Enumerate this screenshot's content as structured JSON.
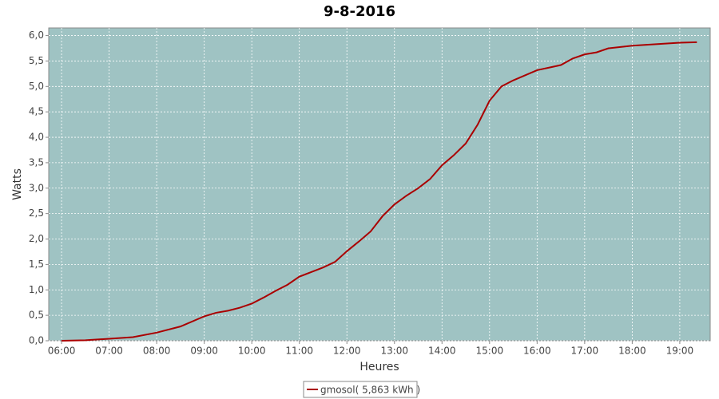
{
  "chart_data": {
    "type": "line",
    "title": "9-8-2016",
    "x_label": "Heures",
    "y_label": "Watts",
    "x": [
      6,
      6.5,
      7,
      7.5,
      8,
      8.5,
      9,
      9.25,
      9.5,
      9.75,
      10,
      10.25,
      10.5,
      10.75,
      11,
      11.25,
      11.5,
      11.75,
      12,
      12.25,
      12.5,
      12.75,
      13,
      13.25,
      13.5,
      13.75,
      14,
      14.25,
      14.5,
      14.75,
      15,
      15.25,
      15.5,
      15.75,
      16,
      16.25,
      16.5,
      16.75,
      17,
      17.25,
      17.5,
      18,
      18.5,
      19,
      19.36
    ],
    "series": [
      {
        "name": "gmosol( 5,863 kWh )",
        "color": "#aa0000",
        "values": [
          0,
          0.01,
          0.04,
          0.07,
          0.16,
          0.28,
          0.48,
          0.55,
          0.59,
          0.65,
          0.73,
          0.85,
          0.98,
          1.1,
          1.26,
          1.35,
          1.44,
          1.55,
          1.76,
          1.95,
          2.15,
          2.45,
          2.68,
          2.85,
          3.0,
          3.18,
          3.45,
          3.65,
          3.88,
          4.25,
          4.72,
          5.0,
          5.12,
          5.22,
          5.32,
          5.37,
          5.42,
          5.55,
          5.63,
          5.67,
          5.75,
          5.8,
          5.83,
          5.86,
          5.87
        ]
      }
    ],
    "xlim": [
      5.73,
      19.64
    ],
    "ylim": [
      0,
      6.15
    ],
    "xticks": [
      {
        "value": 6,
        "label": "06:00"
      },
      {
        "value": 7,
        "label": "07:00"
      },
      {
        "value": 8,
        "label": "08:00"
      },
      {
        "value": 9,
        "label": "09:00"
      },
      {
        "value": 10,
        "label": "10:00"
      },
      {
        "value": 11,
        "label": "11:00"
      },
      {
        "value": 12,
        "label": "12:00"
      },
      {
        "value": 13,
        "label": "13:00"
      },
      {
        "value": 14,
        "label": "14:00"
      },
      {
        "value": 15,
        "label": "15:00"
      },
      {
        "value": 16,
        "label": "16:00"
      },
      {
        "value": 17,
        "label": "17:00"
      },
      {
        "value": 18,
        "label": "18:00"
      },
      {
        "value": 19,
        "label": "19:00"
      }
    ],
    "yticks": [
      {
        "value": 0,
        "label": "0,0"
      },
      {
        "value": 0.5,
        "label": "0,5"
      },
      {
        "value": 1,
        "label": "1,0"
      },
      {
        "value": 1.5,
        "label": "1,5"
      },
      {
        "value": 2,
        "label": "2,0"
      },
      {
        "value": 2.5,
        "label": "2,5"
      },
      {
        "value": 3,
        "label": "3,0"
      },
      {
        "value": 3.5,
        "label": "3,5"
      },
      {
        "value": 4,
        "label": "4,0"
      },
      {
        "value": 4.5,
        "label": "4,5"
      },
      {
        "value": 5,
        "label": "5,0"
      },
      {
        "value": 5.5,
        "label": "5,5"
      },
      {
        "value": 6,
        "label": "6,0"
      }
    ],
    "grid": true,
    "plot_background": "#9fc3c3"
  }
}
